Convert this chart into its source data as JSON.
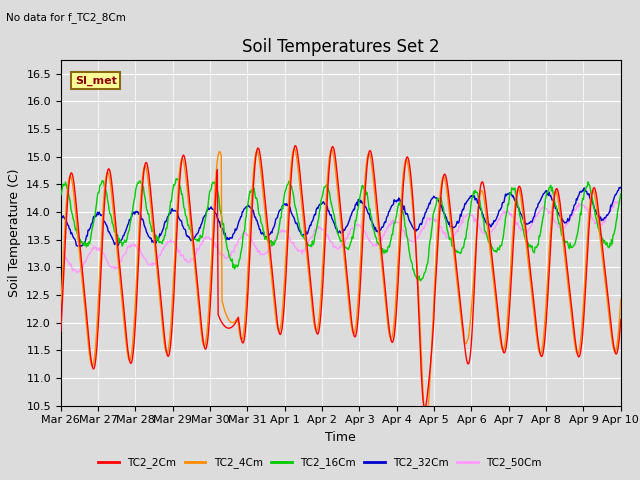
{
  "title": "Soil Temperatures Set 2",
  "subtitle": "No data for f_TC2_8Cm",
  "ylabel": "Soil Temperature (C)",
  "xlabel": "Time",
  "ylim": [
    10.5,
    16.75
  ],
  "legend_label": "SI_met",
  "series_colors": {
    "TC2_2Cm": "#FF0000",
    "TC2_4Cm": "#FF8C00",
    "TC2_16Cm": "#00CC00",
    "TC2_32Cm": "#0000CC",
    "TC2_50Cm": "#FF99FF"
  },
  "x_tick_labels": [
    "Mar 26",
    "Mar 27",
    "Mar 28",
    "Mar 29",
    "Mar 30",
    "Mar 31",
    "Apr 1",
    "Apr 2",
    "Apr 3",
    "Apr 4",
    "Apr 5",
    "Apr 6",
    "Apr 7",
    "Apr 8",
    "Apr 9",
    "Apr 10"
  ],
  "yticks": [
    10.5,
    11.0,
    11.5,
    12.0,
    12.5,
    13.0,
    13.5,
    14.0,
    14.5,
    15.0,
    15.5,
    16.0,
    16.5
  ],
  "background_color": "#DCDCDC",
  "title_fontsize": 12,
  "axis_fontsize": 9,
  "tick_fontsize": 8,
  "linewidth": 1.0
}
